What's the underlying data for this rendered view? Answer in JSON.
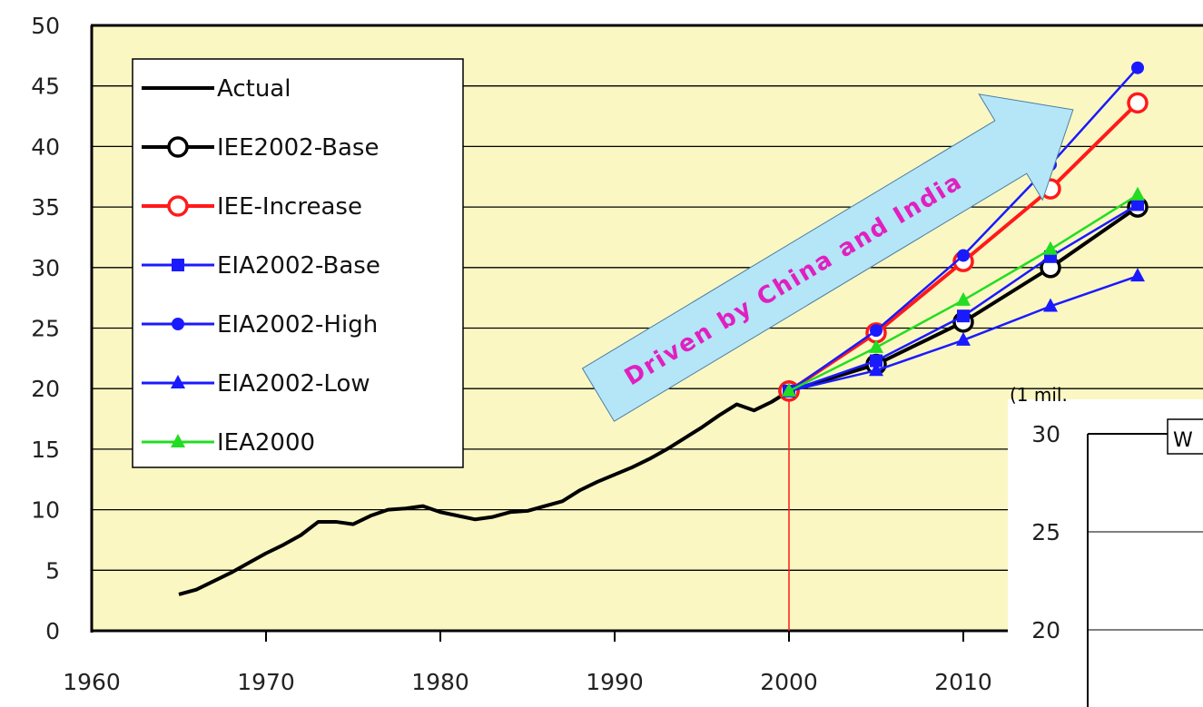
{
  "chart_data": {
    "type": "line",
    "xlim": [
      1960,
      2020
    ],
    "ylim": [
      0,
      50
    ],
    "x_ticks": [
      1960,
      1970,
      1980,
      1990,
      2000,
      2010
    ],
    "y_ticks": [
      0,
      5,
      10,
      15,
      20,
      25,
      30,
      35,
      40,
      45,
      50
    ],
    "grid": "horizontal",
    "legend_placement": "top-left",
    "background_color": "#fbf7c3",
    "reference_line_x": 2000,
    "series": [
      {
        "name": "Actual",
        "color": "#000000",
        "marker": "none",
        "x": [
          1965,
          1966,
          1967,
          1968,
          1969,
          1970,
          1971,
          1972,
          1973,
          1974,
          1975,
          1976,
          1977,
          1978,
          1979,
          1980,
          1981,
          1982,
          1983,
          1984,
          1985,
          1986,
          1987,
          1988,
          1989,
          1990,
          1991,
          1992,
          1993,
          1994,
          1995,
          1996,
          1997,
          1998,
          1999,
          2000
        ],
        "y": [
          3.0,
          3.4,
          4.1,
          4.8,
          5.6,
          6.4,
          7.1,
          7.9,
          9.0,
          9.0,
          8.8,
          9.5,
          10.0,
          10.1,
          10.3,
          9.8,
          9.5,
          9.2,
          9.4,
          9.8,
          9.9,
          10.3,
          10.7,
          11.6,
          12.3,
          12.9,
          13.5,
          14.2,
          15.0,
          15.9,
          16.8,
          17.8,
          18.7,
          18.2,
          18.9,
          19.8
        ]
      },
      {
        "name": "IEE2002-Base",
        "color": "#000000",
        "marker": "open-circle",
        "x": [
          2000,
          2005,
          2010,
          2015,
          2020
        ],
        "y": [
          19.8,
          22.0,
          25.5,
          30.0,
          35.0
        ]
      },
      {
        "name": "IEE-Increase",
        "color": "#ff1a1a",
        "marker": "open-circle",
        "x": [
          2000,
          2005,
          2010,
          2015,
          2020
        ],
        "y": [
          19.8,
          24.6,
          30.5,
          36.5,
          43.6
        ]
      },
      {
        "name": "EIA2002-Base",
        "color": "#1a1aff",
        "marker": "square",
        "x": [
          2000,
          2005,
          2010,
          2015,
          2020
        ],
        "y": [
          19.8,
          22.3,
          26.0,
          30.9,
          35.2
        ]
      },
      {
        "name": "EIA2002-High",
        "color": "#1a1aff",
        "marker": "dot",
        "x": [
          2000,
          2005,
          2010,
          2015,
          2020
        ],
        "y": [
          19.8,
          24.8,
          31.0,
          38.5,
          46.5
        ]
      },
      {
        "name": "EIA2002-Low",
        "color": "#1a1aff",
        "marker": "triangle",
        "x": [
          2000,
          2005,
          2010,
          2015,
          2020
        ],
        "y": [
          19.8,
          21.5,
          24.0,
          26.8,
          29.3
        ]
      },
      {
        "name": "IEA2000",
        "color": "#22dd22",
        "marker": "triangle",
        "x": [
          2000,
          2005,
          2010,
          2015,
          2020
        ],
        "y": [
          19.8,
          23.4,
          27.3,
          31.5,
          36.0
        ]
      }
    ],
    "annotations": [
      {
        "text": "Driven by China and India",
        "color": "#e020c0",
        "arrow_fill": "#b4e6f8"
      }
    ]
  },
  "inset": {
    "unit_label": "(1 mil.",
    "y_ticks": [
      20,
      25,
      30
    ],
    "ylim": [
      20,
      30
    ],
    "box_label": "W"
  }
}
